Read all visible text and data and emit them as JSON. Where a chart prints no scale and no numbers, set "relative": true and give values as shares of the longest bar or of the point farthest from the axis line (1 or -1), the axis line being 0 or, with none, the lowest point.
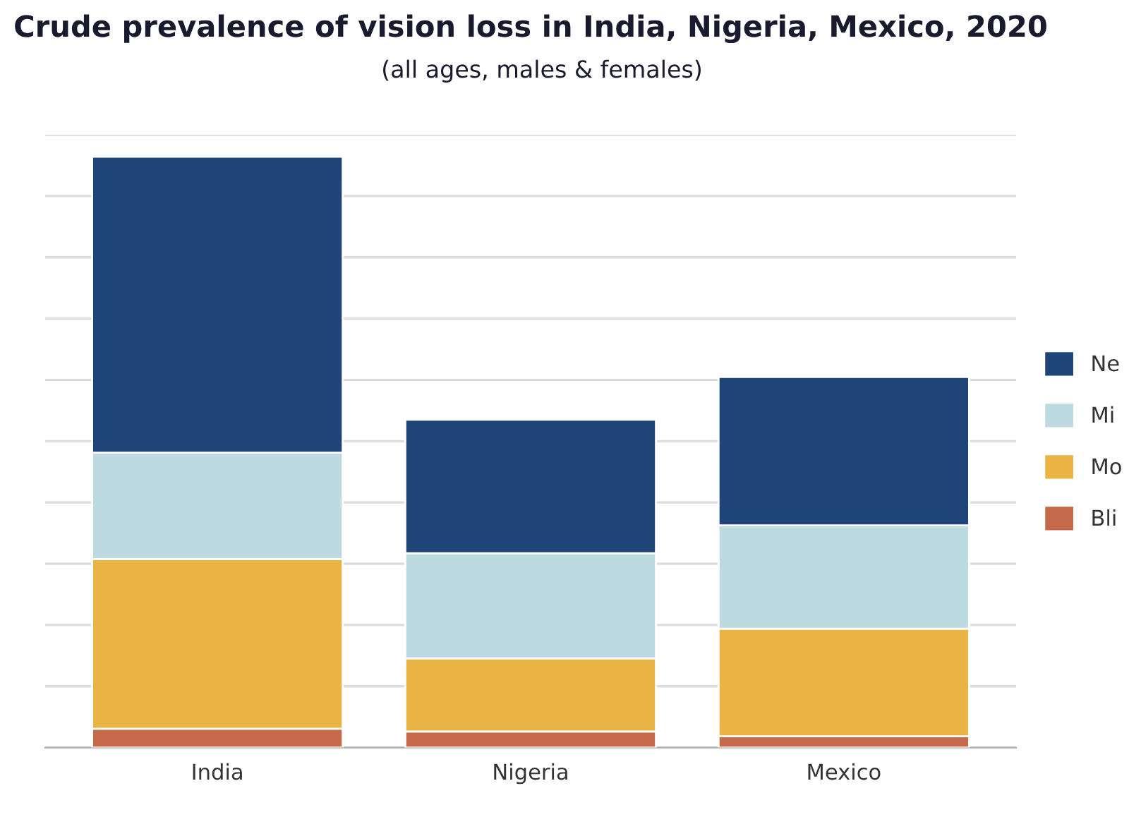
{
  "chart_data": {
    "type": "bar",
    "title": "Crude prevalence of vision loss in India, Nigeria, Mexico, 2020",
    "subtitle": "(all ages, males & females)",
    "categories": [
      "India",
      "Nigeria",
      "Mexico"
    ],
    "stacked": true,
    "relative": true,
    "grid": "y",
    "legend": "right",
    "series": [
      {
        "name": "Bli",
        "color": "#c6694b",
        "values": [
          0.032,
          0.027,
          0.019
        ]
      },
      {
        "name": "Mo",
        "color": "#e9b444",
        "values": [
          0.287,
          0.124,
          0.182
        ]
      },
      {
        "name": "Mi",
        "color": "#bcdadf",
        "values": [
          0.18,
          0.178,
          0.175
        ]
      },
      {
        "name": "Ne",
        "color": "#1f4477",
        "values": [
          0.501,
          0.226,
          0.251
        ]
      }
    ]
  }
}
